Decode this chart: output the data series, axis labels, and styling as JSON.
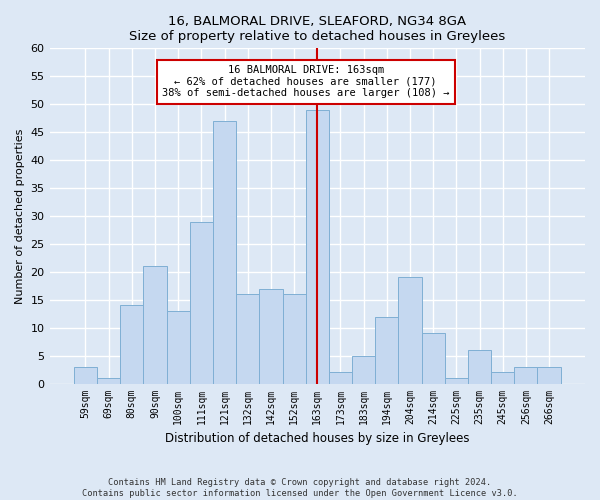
{
  "title_line1": "16, BALMORAL DRIVE, SLEAFORD, NG34 8GA",
  "title_line2": "Size of property relative to detached houses in Greylees",
  "xlabel": "Distribution of detached houses by size in Greylees",
  "ylabel": "Number of detached properties",
  "categories": [
    "59sqm",
    "69sqm",
    "80sqm",
    "90sqm",
    "100sqm",
    "111sqm",
    "121sqm",
    "132sqm",
    "142sqm",
    "152sqm",
    "163sqm",
    "173sqm",
    "183sqm",
    "194sqm",
    "204sqm",
    "214sqm",
    "225sqm",
    "235sqm",
    "245sqm",
    "256sqm",
    "266sqm"
  ],
  "values": [
    3,
    1,
    14,
    21,
    13,
    29,
    47,
    16,
    17,
    16,
    49,
    2,
    5,
    12,
    19,
    9,
    1,
    6,
    2,
    3,
    3
  ],
  "highlight_index": 10,
  "bar_color": "#c5d8f0",
  "bar_edge_color": "#7fafd4",
  "highlight_line_color": "#cc0000",
  "ylim": [
    0,
    60
  ],
  "yticks": [
    0,
    5,
    10,
    15,
    20,
    25,
    30,
    35,
    40,
    45,
    50,
    55,
    60
  ],
  "annotation_text": "16 BALMORAL DRIVE: 163sqm\n← 62% of detached houses are smaller (177)\n38% of semi-detached houses are larger (108) →",
  "annotation_box_color": "#ffffff",
  "annotation_box_edge_color": "#cc0000",
  "footer_line1": "Contains HM Land Registry data © Crown copyright and database right 2024.",
  "footer_line2": "Contains public sector information licensed under the Open Government Licence v3.0.",
  "background_color": "#dde8f5",
  "grid_color": "#ffffff"
}
